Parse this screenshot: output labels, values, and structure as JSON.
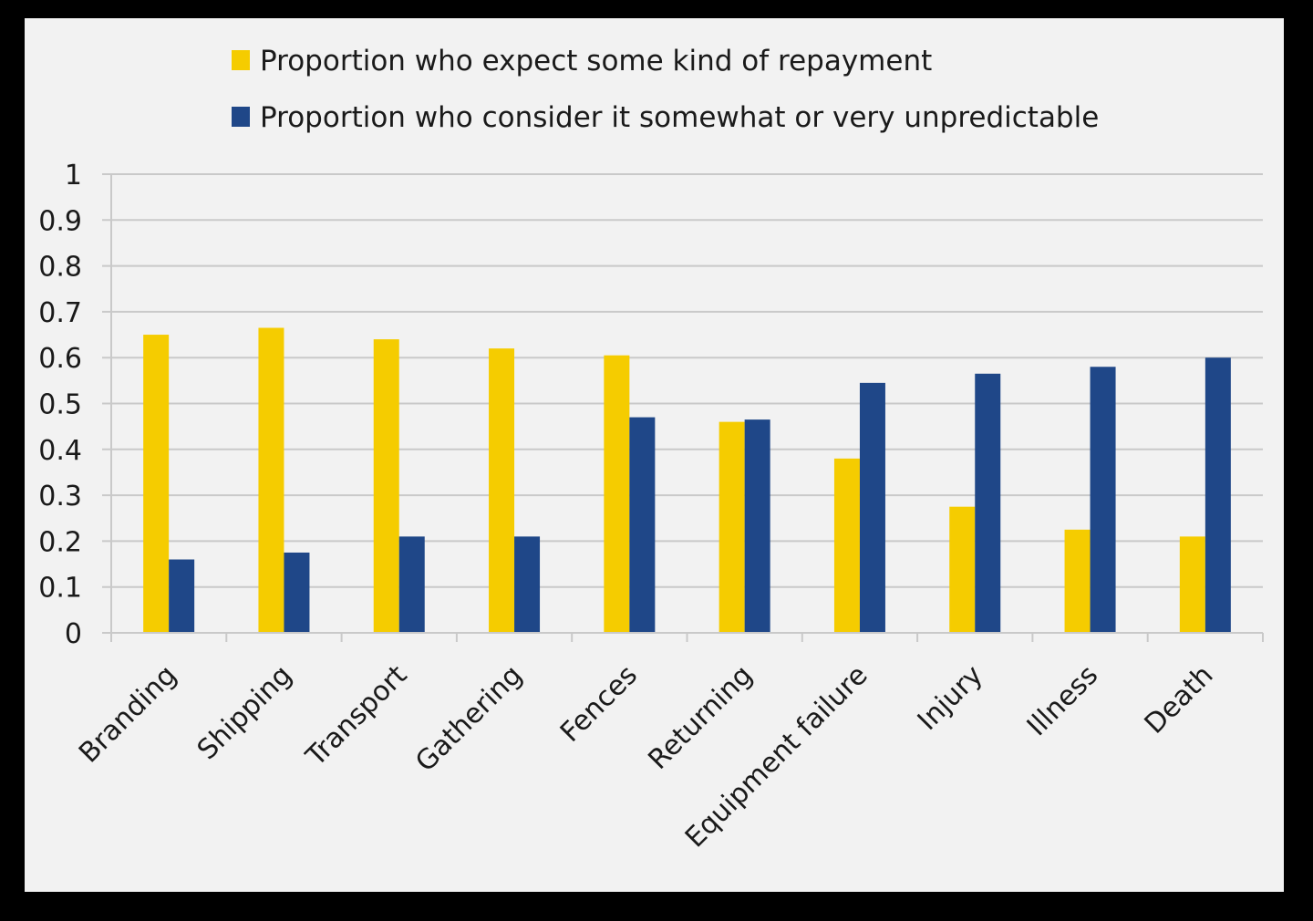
{
  "chart_data": {
    "type": "bar",
    "categories": [
      "Branding",
      "Shipping",
      "Transport",
      "Gathering",
      "Fences",
      "Returning",
      "Equipment failure",
      "Injury",
      "Illness",
      "Death"
    ],
    "series": [
      {
        "name": "Proportion who expect some kind of repayment",
        "color": "#f5cc00",
        "values": [
          0.65,
          0.665,
          0.64,
          0.62,
          0.605,
          0.46,
          0.38,
          0.275,
          0.225,
          0.21
        ]
      },
      {
        "name": "Proportion who consider it somewhat or very unpredictable",
        "color": "#1f4788",
        "values": [
          0.16,
          0.175,
          0.21,
          0.21,
          0.47,
          0.465,
          0.545,
          0.565,
          0.58,
          0.6
        ]
      }
    ],
    "ylim": [
      0,
      1
    ],
    "yticks": [
      "0",
      "0.1",
      "0.2",
      "0.3",
      "0.4",
      "0.5",
      "0.6",
      "0.7",
      "0.8",
      "0.9",
      "1"
    ],
    "grid": true,
    "legend_position": "top"
  }
}
